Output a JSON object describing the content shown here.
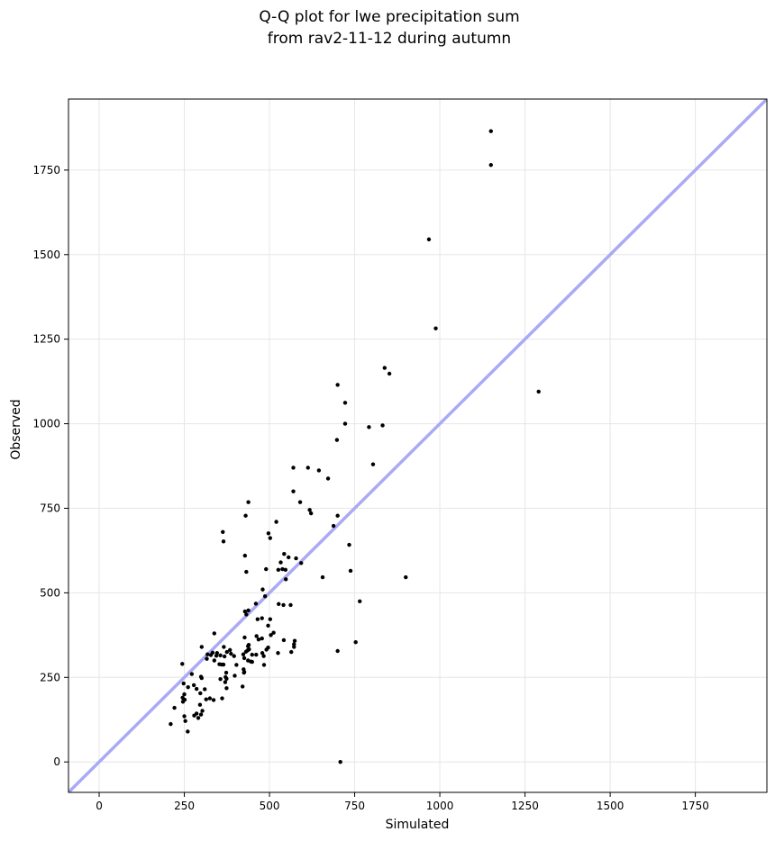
{
  "chart_data": {
    "type": "scatter",
    "title": "Q-Q plot for lwe precipitation sum",
    "subtitle": "from rav2-11-12 during autumn",
    "xlabel": "Simulated",
    "ylabel": "Observed",
    "xlim": [
      -90,
      1960
    ],
    "ylim": [
      -90,
      1960
    ],
    "xticks": [
      0,
      250,
      500,
      750,
      1000,
      1250,
      1500,
      1750
    ],
    "yticks": [
      0,
      250,
      500,
      750,
      1000,
      1250,
      1500,
      1750
    ],
    "grid": true,
    "reference_line": {
      "from": [
        -90,
        -90
      ],
      "to": [
        1960,
        1960
      ],
      "color": "#aaaaf5"
    },
    "point_color": "#000000",
    "points": [
      [
        1150,
        1865
      ],
      [
        1150,
        1765
      ],
      [
        968,
        1545
      ],
      [
        988,
        1282
      ],
      [
        1290,
        1095
      ],
      [
        838,
        1165
      ],
      [
        852,
        1148
      ],
      [
        700,
        1115
      ],
      [
        722,
        1062
      ],
      [
        722,
        1000
      ],
      [
        832,
        995
      ],
      [
        792,
        990
      ],
      [
        698,
        952
      ],
      [
        804,
        880
      ],
      [
        570,
        870
      ],
      [
        613,
        870
      ],
      [
        645,
        862
      ],
      [
        672,
        838
      ],
      [
        618,
        745
      ],
      [
        622,
        735
      ],
      [
        570,
        800
      ],
      [
        590,
        768
      ],
      [
        438,
        768
      ],
      [
        430,
        728
      ],
      [
        700,
        728
      ],
      [
        688,
        698
      ],
      [
        363,
        680
      ],
      [
        365,
        652
      ],
      [
        520,
        710
      ],
      [
        497,
        676
      ],
      [
        502,
        662
      ],
      [
        734,
        642
      ],
      [
        543,
        615
      ],
      [
        428,
        610
      ],
      [
        556,
        605
      ],
      [
        533,
        590
      ],
      [
        578,
        602
      ],
      [
        593,
        588
      ],
      [
        538,
        570
      ],
      [
        526,
        568
      ],
      [
        547,
        568
      ],
      [
        490,
        570
      ],
      [
        432,
        562
      ],
      [
        738,
        565
      ],
      [
        656,
        546
      ],
      [
        900,
        546
      ],
      [
        548,
        540
      ],
      [
        480,
        510
      ],
      [
        487,
        490
      ],
      [
        460,
        468
      ],
      [
        765,
        475
      ],
      [
        527,
        467
      ],
      [
        541,
        464
      ],
      [
        562,
        464
      ],
      [
        502,
        422
      ],
      [
        478,
        425
      ],
      [
        496,
        403
      ],
      [
        465,
        422
      ],
      [
        428,
        445
      ],
      [
        438,
        448
      ],
      [
        432,
        436
      ],
      [
        512,
        382
      ],
      [
        504,
        375
      ],
      [
        462,
        372
      ],
      [
        478,
        365
      ],
      [
        468,
        362
      ],
      [
        542,
        360
      ],
      [
        753,
        354
      ],
      [
        574,
        358
      ],
      [
        572,
        348
      ],
      [
        572,
        340
      ],
      [
        564,
        325
      ],
      [
        525,
        322
      ],
      [
        700,
        328
      ],
      [
        338,
        380
      ],
      [
        427,
        368
      ],
      [
        439,
        346
      ],
      [
        437,
        342
      ],
      [
        301,
        340
      ],
      [
        366,
        340
      ],
      [
        375,
        325
      ],
      [
        384,
        331
      ],
      [
        387,
        320
      ],
      [
        440,
        333
      ],
      [
        396,
        313
      ],
      [
        344,
        314
      ],
      [
        333,
        323
      ],
      [
        346,
        322
      ],
      [
        318,
        318
      ],
      [
        328,
        316
      ],
      [
        356,
        315
      ],
      [
        368,
        312
      ],
      [
        316,
        305
      ],
      [
        338,
        300
      ],
      [
        431,
        326
      ],
      [
        436,
        330
      ],
      [
        423,
        318
      ],
      [
        449,
        317
      ],
      [
        461,
        317
      ],
      [
        479,
        322
      ],
      [
        496,
        338
      ],
      [
        491,
        332
      ],
      [
        483,
        313
      ],
      [
        437,
        300
      ],
      [
        445,
        297
      ],
      [
        426,
        307
      ],
      [
        449,
        296
      ],
      [
        353,
        289
      ],
      [
        360,
        288
      ],
      [
        365,
        288
      ],
      [
        403,
        287
      ],
      [
        484,
        287
      ],
      [
        424,
        274
      ],
      [
        426,
        266
      ],
      [
        373,
        264
      ],
      [
        398,
        255
      ],
      [
        371,
        251
      ],
      [
        356,
        245
      ],
      [
        272,
        260
      ],
      [
        244,
        290
      ],
      [
        299,
        252
      ],
      [
        301,
        248
      ],
      [
        374,
        246
      ],
      [
        425,
        264
      ],
      [
        370,
        236
      ],
      [
        248,
        232
      ],
      [
        278,
        227
      ],
      [
        261,
        221
      ],
      [
        286,
        216
      ],
      [
        310,
        215
      ],
      [
        374,
        218
      ],
      [
        421,
        223
      ],
      [
        297,
        203
      ],
      [
        250,
        200
      ],
      [
        245,
        190
      ],
      [
        251,
        184
      ],
      [
        246,
        178
      ],
      [
        325,
        188
      ],
      [
        314,
        185
      ],
      [
        361,
        188
      ],
      [
        336,
        183
      ],
      [
        221,
        160
      ],
      [
        296,
        169
      ],
      [
        303,
        151
      ],
      [
        250,
        135
      ],
      [
        279,
        137
      ],
      [
        286,
        143
      ],
      [
        291,
        130
      ],
      [
        299,
        140
      ],
      [
        253,
        121
      ],
      [
        210,
        112
      ],
      [
        260,
        90
      ],
      [
        708,
        0
      ]
    ]
  }
}
